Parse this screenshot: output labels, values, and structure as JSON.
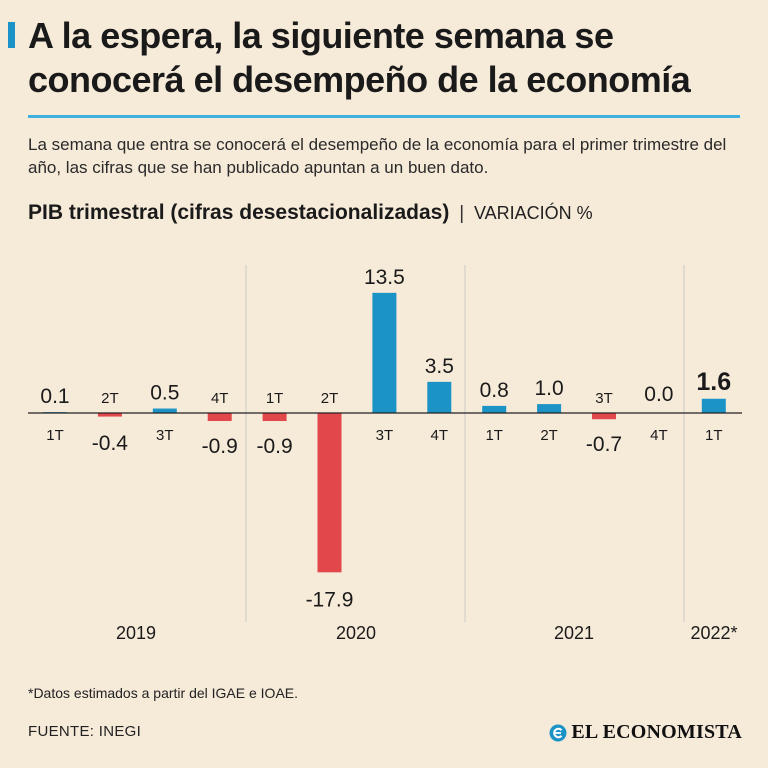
{
  "header": {
    "title": "A la espera, la siguiente semana se conocerá el desempeño de la economía",
    "subtitle": "La semana que entra se conocerá el desempeño de la economía para el primer trimestre del año, las cifras que se han publicado apuntan a un buen dato.",
    "chart_title": "PIB trimestral (cifras desestacionalizadas)",
    "chart_separator": "|",
    "chart_unit": "VARIACIÓN %"
  },
  "footer": {
    "note": "*Datos estimados a partir del IGAE e IOAE.",
    "source": "FUENTE: INEGI",
    "logo_text": "EL ECONOMISTA"
  },
  "colors": {
    "positive": "#1c93c7",
    "negative": "#e2474b",
    "accent": "#3fb1e0",
    "background": "#f6ead9"
  },
  "chart_data": {
    "type": "bar",
    "title": "PIB trimestral (cifras desestacionalizadas)",
    "ylabel": "VARIACIÓN %",
    "ylim": [
      -17.9,
      13.5
    ],
    "categories": [
      "1T",
      "2T",
      "3T",
      "4T",
      "1T",
      "2T",
      "3T",
      "4T",
      "1T",
      "2T",
      "3T",
      "4T",
      "1T"
    ],
    "years": [
      "2019",
      "2019",
      "2019",
      "2019",
      "2020",
      "2020",
      "2020",
      "2020",
      "2021",
      "2021",
      "2021",
      "2021",
      "2022*"
    ],
    "year_labels": [
      "2019",
      "2020",
      "2021",
      "2022*"
    ],
    "values": [
      0.1,
      -0.4,
      0.5,
      -0.9,
      -0.9,
      -17.9,
      13.5,
      3.5,
      0.8,
      1.0,
      -0.7,
      0.0,
      1.6
    ],
    "value_labels": [
      "0.1",
      "-0.4",
      "0.5",
      "-0.9",
      "-0.9",
      "-17.9",
      "13.5",
      "3.5",
      "0.8",
      "1.0",
      "-0.7",
      "0.0",
      "1.6"
    ],
    "highlight_last": true
  }
}
